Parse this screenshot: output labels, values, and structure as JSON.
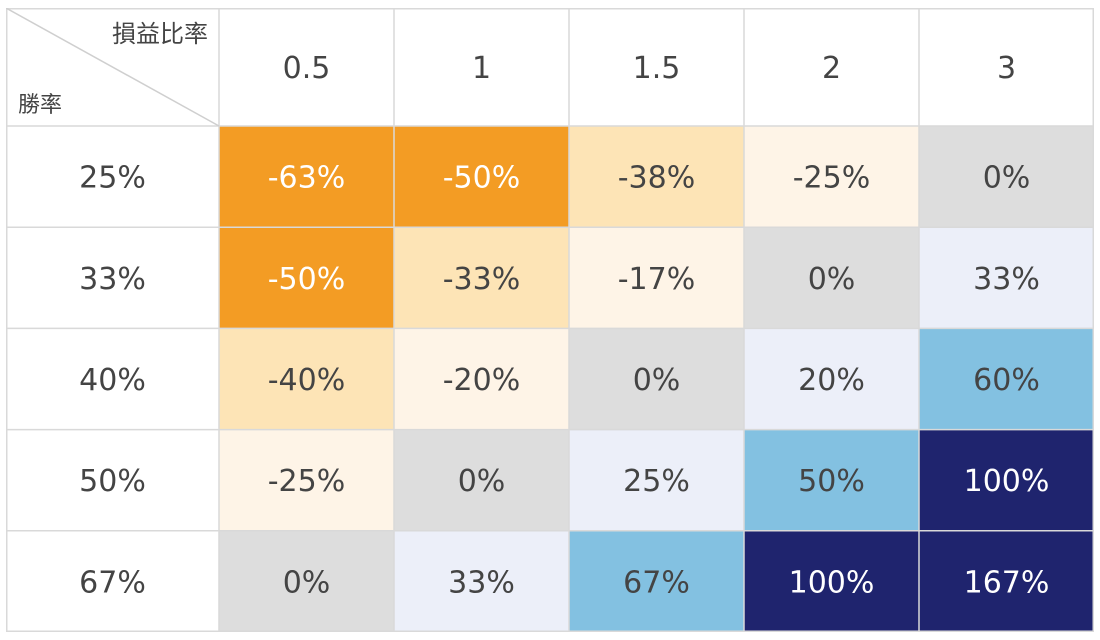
{
  "chart_data": {
    "type": "heatmap",
    "title": "",
    "corner": {
      "column_axis_label": "損益比率",
      "row_axis_label": "勝率"
    },
    "columns": [
      "0.5",
      "1",
      "1.5",
      "2",
      "3"
    ],
    "rows": [
      "25%",
      "33%",
      "40%",
      "50%",
      "67%"
    ],
    "values": [
      [
        -63,
        -50,
        -38,
        -25,
        0
      ],
      [
        -50,
        -33,
        -17,
        0,
        33
      ],
      [
        -40,
        -20,
        0,
        20,
        60
      ],
      [
        -25,
        0,
        25,
        50,
        100
      ],
      [
        0,
        33,
        67,
        100,
        167
      ]
    ],
    "cell_labels": [
      [
        "-63%",
        "-50%",
        "-38%",
        "-25%",
        "0%"
      ],
      [
        "-50%",
        "-33%",
        "-17%",
        "0%",
        "33%"
      ],
      [
        "-40%",
        "-20%",
        "0%",
        "20%",
        "60%"
      ],
      [
        "-25%",
        "0%",
        "25%",
        "50%",
        "100%"
      ],
      [
        "0%",
        "33%",
        "67%",
        "100%",
        "167%"
      ]
    ],
    "color_scale": {
      "strong_negative": "#f39c24",
      "medium_negative": "#fde4b6",
      "light_negative": "#fef4e7",
      "zero": "#dddddd",
      "light_positive": "#eceff9",
      "medium_positive": "#83c1e1",
      "strong_positive": "#1f246e",
      "text_dark": "#444444",
      "text_on_strong": "#ffffff",
      "grid": "#d9d9d9"
    }
  }
}
